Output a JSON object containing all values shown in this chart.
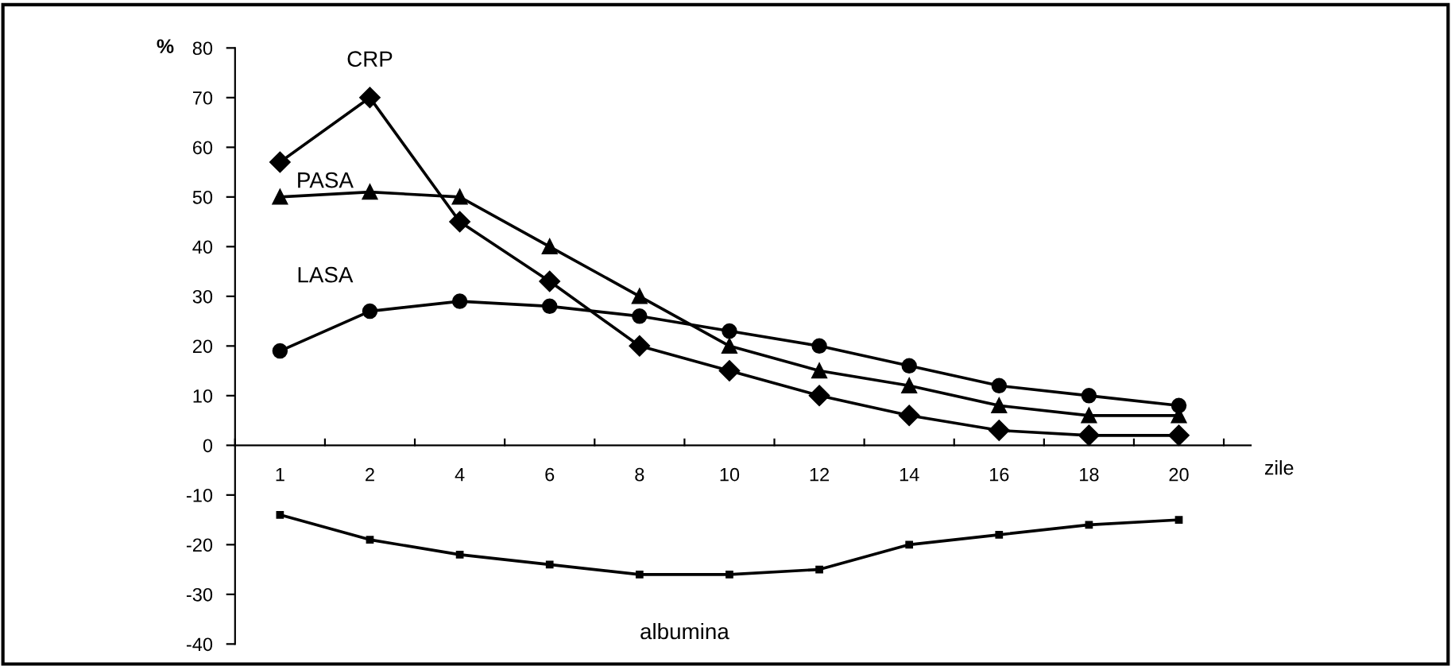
{
  "chart_data": {
    "type": "line",
    "xlabel": "zile",
    "ylabel": "%",
    "categories": [
      "1",
      "2",
      "4",
      "6",
      "8",
      "10",
      "12",
      "14",
      "16",
      "18",
      "20"
    ],
    "series": [
      {
        "name": "CRP",
        "color": "#000000",
        "marker": "diamond",
        "values": [
          57,
          70,
          45,
          33,
          20,
          15,
          10,
          6,
          3,
          2,
          2
        ]
      },
      {
        "name": "PASA",
        "color": "#000000",
        "marker": "triangle",
        "values": [
          50,
          51,
          50,
          40,
          30,
          20,
          15,
          12,
          8,
          6,
          6
        ]
      },
      {
        "name": "LASA",
        "color": "#000000",
        "marker": "circle",
        "values": [
          19,
          27,
          29,
          28,
          26,
          23,
          20,
          16,
          12,
          10,
          8
        ]
      },
      {
        "name": "albumina",
        "color": "#000000",
        "marker": "square",
        "values": [
          -14,
          -19,
          -22,
          -24,
          -26,
          -26,
          -25,
          -20,
          -18,
          -16,
          -15
        ]
      }
    ],
    "ylim": [
      -40,
      80
    ],
    "yticks": [
      -40,
      -30,
      -20,
      -10,
      0,
      10,
      20,
      30,
      40,
      50,
      60,
      70,
      80
    ],
    "grid": false,
    "legend": false,
    "line_style": "solid"
  }
}
